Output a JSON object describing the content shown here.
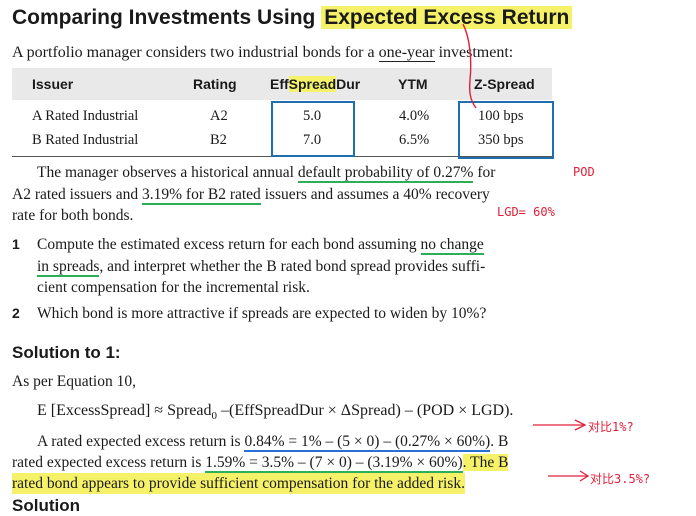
{
  "title_plain": "Comparing Investments Using ",
  "title_highlight": "Expected Excess Return",
  "intro_part1": "A portfolio manager considers two industrial bonds for a ",
  "intro_underlined": "one-year",
  "intro_part2": " investment:",
  "table": {
    "headers": [
      "Issuer",
      "Rating",
      "EffSpreadDur",
      "YTM",
      "Z-Spread"
    ],
    "header_effspread_pre": "Eff",
    "header_effspread_hl": "Spread",
    "header_effspread_post": "Dur",
    "rows": [
      {
        "issuer": "A Rated Industrial",
        "rating": "A2",
        "dur": "5.0",
        "ytm": "4.0%",
        "zspread": "100 bps"
      },
      {
        "issuer": "B Rated Industrial",
        "rating": "B2",
        "dur": "7.0",
        "ytm": "6.5%",
        "zspread": "350 bps"
      }
    ]
  },
  "para1": {
    "l1_a": "The manager observes a historical annual ",
    "l1_u": "default probability of 0.27%",
    "l1_b": " for",
    "l2_a": "A2 rated issuers and ",
    "l2_u": "3.19% for B2 rated",
    "l2_b": " issuers and assumes a 40% recovery",
    "l3": "rate for both bonds."
  },
  "q1": {
    "num": "1",
    "l1_a": "Compute the estimated excess return for each bond assuming ",
    "l1_u": "no change",
    "l2_u": "in spreads",
    "l2_b": ", and interpret whether the B rated bond spread provides suffi-",
    "l3": "cient compensation for the incremental risk."
  },
  "q2": {
    "num": "2",
    "text": "Which bond is more attractive if spreads are expected to widen by 10%?"
  },
  "solution_heading": "Solution to 1:",
  "as_per": "As per Equation 10,",
  "equation": {
    "left": "E [ExcessSpread] ≈ Spread",
    "sub": "0",
    "right": " –(EffSpreadDur × ΔSpread) – (POD × LGD)."
  },
  "sol_a": {
    "a": "A rated expected excess return is ",
    "u": "0.84% = 1% – (5 × 0) – (0.27% × 60%)",
    "b": ". B"
  },
  "sol_b": {
    "a": "rated expected excess return is ",
    "u": "1.59% = 3.5% – (7 × 0) – (3.19% × 60%)",
    "b": ". The B"
  },
  "sol_c": "rated bond appears to provide sufficient compensation for the added risk.",
  "next_heading_partial": "Solution",
  "annotations": {
    "pod": "POD",
    "lgd": "LGD= 60%",
    "compare1": "对比1%?",
    "compare35": "对比3.5%?"
  },
  "colors": {
    "highlight": "#f5f26a",
    "annotation_red": "#e0203a",
    "box_blue": "#1f6fb0",
    "underline_green": "#2fae5a",
    "underline_blue": "#2a6fd6"
  }
}
